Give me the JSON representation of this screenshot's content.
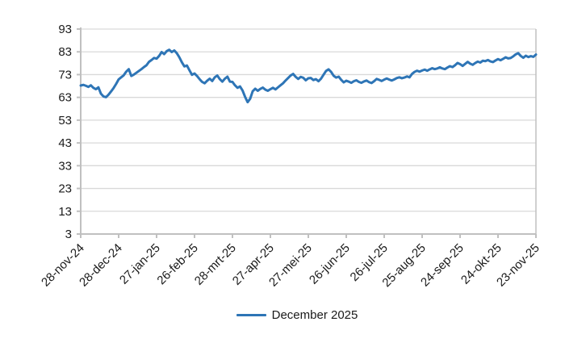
{
  "chart_data": {
    "type": "line",
    "title": "",
    "xlabel": "",
    "ylabel": "",
    "ylim": [
      3,
      93
    ],
    "y_ticks": [
      3,
      13,
      23,
      33,
      43,
      53,
      63,
      73,
      83,
      93
    ],
    "x_tick_labels": [
      "28-nov-24",
      "28-dec-24",
      "27-jan-25",
      "26-feb-25",
      "28-mrt-25",
      "27-apr-25",
      "27-mei-25",
      "26-jun-25",
      "26-jul-25",
      "25-aug-25",
      "24-sep-25",
      "24-okt-25",
      "23-nov-25"
    ],
    "grid": "horizontal",
    "legend_position": "bottom",
    "series": [
      {
        "name": "December 2025",
        "color": "#2E75B6",
        "day_step": 2,
        "values": [
          68.2,
          68.5,
          68.1,
          67.6,
          68.3,
          67.2,
          66.6,
          67.4,
          64.6,
          63.4,
          63.1,
          64.2,
          65.6,
          67.1,
          68.9,
          70.9,
          71.8,
          72.7,
          74.3,
          75.4,
          72.4,
          73.0,
          73.8,
          74.6,
          75.4,
          76.3,
          77.1,
          78.6,
          79.4,
          80.3,
          80.0,
          81.2,
          82.9,
          82.0,
          83.3,
          83.9,
          82.9,
          83.6,
          82.4,
          80.6,
          78.4,
          76.6,
          77.0,
          74.9,
          72.9,
          73.5,
          72.4,
          71.0,
          69.8,
          69.2,
          70.3,
          71.2,
          70.2,
          71.8,
          72.6,
          71.0,
          69.9,
          71.2,
          72.1,
          69.9,
          69.8,
          68.3,
          67.2,
          67.8,
          66.0,
          63.2,
          60.9,
          62.4,
          65.7,
          66.8,
          65.9,
          66.7,
          67.3,
          66.4,
          65.9,
          66.6,
          67.2,
          66.5,
          67.4,
          68.3,
          69.2,
          70.4,
          71.5,
          72.6,
          73.3,
          72.0,
          71.1,
          72.0,
          71.6,
          70.5,
          71.4,
          71.5,
          70.6,
          71.0,
          70.1,
          71.2,
          72.9,
          74.6,
          75.3,
          74.2,
          72.5,
          71.7,
          72.1,
          70.7,
          69.6,
          70.3,
          69.9,
          69.4,
          70.1,
          70.5,
          69.8,
          69.4,
          70.0,
          70.4,
          69.7,
          69.3,
          70.1,
          71.1,
          70.7,
          70.2,
          70.8,
          71.3,
          70.8,
          70.4,
          70.9,
          71.5,
          71.8,
          71.4,
          71.7,
          72.2,
          71.8,
          73.3,
          74.2,
          74.7,
          74.3,
          74.8,
          75.2,
          74.7,
          75.3,
          75.8,
          75.4,
          75.7,
          76.2,
          75.7,
          75.4,
          76.1,
          76.7,
          76.3,
          77.1,
          78.1,
          77.6,
          76.8,
          77.7,
          78.6,
          77.8,
          77.3,
          78.1,
          78.7,
          78.3,
          79.1,
          78.9,
          79.4,
          78.8,
          78.5,
          79.2,
          79.8,
          79.3,
          79.9,
          80.6,
          80.1,
          80.3,
          81.0,
          81.9,
          82.4,
          81.2,
          80.4,
          81.3,
          80.7,
          81.1,
          80.8,
          81.8
        ]
      }
    ]
  },
  "colors": {
    "line": "#2E75B6",
    "gridline": "#D9D9D9",
    "axis": "#C0C0C0",
    "text": "#1a1a1a"
  },
  "legend": {
    "label": "December 2025"
  }
}
